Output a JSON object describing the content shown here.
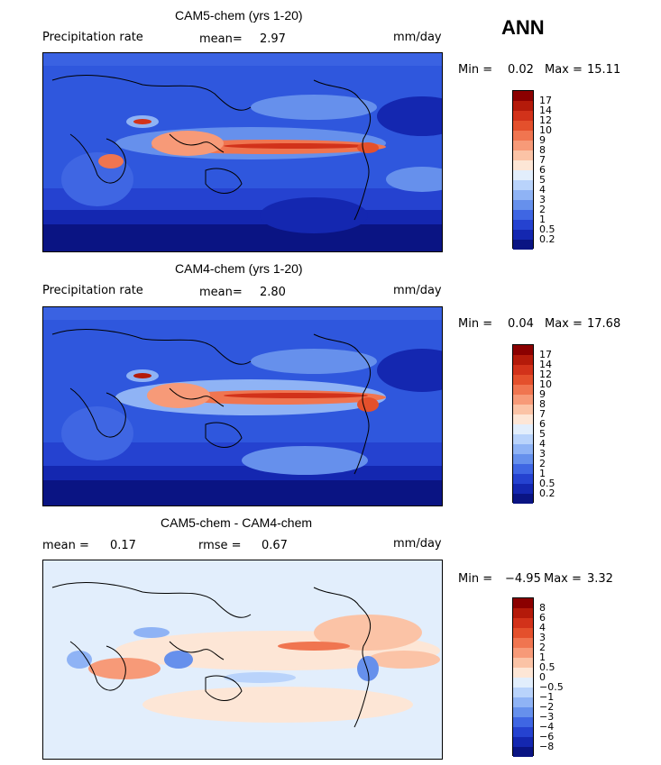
{
  "season": "ANN",
  "panels": [
    {
      "title": "CAM5-chem (yrs 1-20)",
      "left_label": "Precipitation rate",
      "stat1_label": "mean=",
      "stat1_value": "2.97",
      "stat2_label": "",
      "stat2_value": "",
      "units": "mm/day",
      "min_label": "Min =",
      "min_value": "0.02",
      "max_label": "Max =",
      "max_value": "15.11",
      "colorbar_levels": [
        "17",
        "14",
        "12",
        "10",
        "9",
        "8",
        "7",
        "6",
        "5",
        "4",
        "3",
        "2",
        "1",
        "0.5",
        "0.2"
      ],
      "colorbar_colors": [
        "#8b0000",
        "#b41a0a",
        "#d2321a",
        "#e4502c",
        "#f07550",
        "#f79a78",
        "#fbc3a6",
        "#fde6d6",
        "#e2eefc",
        "#b9d3fb",
        "#8fb3f5",
        "#6690ec",
        "#3f66e3",
        "#2542d0",
        "#1427b0",
        "#0a1483"
      ]
    },
    {
      "title": "CAM4-chem (yrs 1-20)",
      "left_label": "Precipitation rate",
      "stat1_label": "mean=",
      "stat1_value": "2.80",
      "stat2_label": "",
      "stat2_value": "",
      "units": "mm/day",
      "min_label": "Min =",
      "min_value": "0.04",
      "max_label": "Max =",
      "max_value": "17.68",
      "colorbar_levels": [
        "17",
        "14",
        "12",
        "10",
        "9",
        "8",
        "7",
        "6",
        "5",
        "4",
        "3",
        "2",
        "1",
        "0.5",
        "0.2"
      ],
      "colorbar_colors": [
        "#8b0000",
        "#b41a0a",
        "#d2321a",
        "#e4502c",
        "#f07550",
        "#f79a78",
        "#fbc3a6",
        "#fde6d6",
        "#e2eefc",
        "#b9d3fb",
        "#8fb3f5",
        "#6690ec",
        "#3f66e3",
        "#2542d0",
        "#1427b0",
        "#0a1483"
      ]
    },
    {
      "title": "CAM5-chem - CAM4-chem",
      "left_label": "",
      "stat1_label": "mean =",
      "stat1_value": "0.17",
      "stat2_label": "rmse =",
      "stat2_value": "0.67",
      "units": "mm/day",
      "min_label": "Min =",
      "min_value": "−4.95",
      "max_label": "Max =",
      "max_value": "3.32",
      "colorbar_levels": [
        "8",
        "6",
        "4",
        "3",
        "2",
        "1",
        "0.5",
        "0",
        "−0.5",
        "−1",
        "−2",
        "−3",
        "−4",
        "−6",
        "−8"
      ],
      "colorbar_colors": [
        "#8b0000",
        "#b41a0a",
        "#d2321a",
        "#e4502c",
        "#f07550",
        "#f79a78",
        "#fbc3a6",
        "#fde6d6",
        "#e2eefc",
        "#b9d3fb",
        "#8fb3f5",
        "#6690ec",
        "#3f66e3",
        "#2542d0",
        "#1427b0",
        "#0a1483"
      ]
    }
  ]
}
